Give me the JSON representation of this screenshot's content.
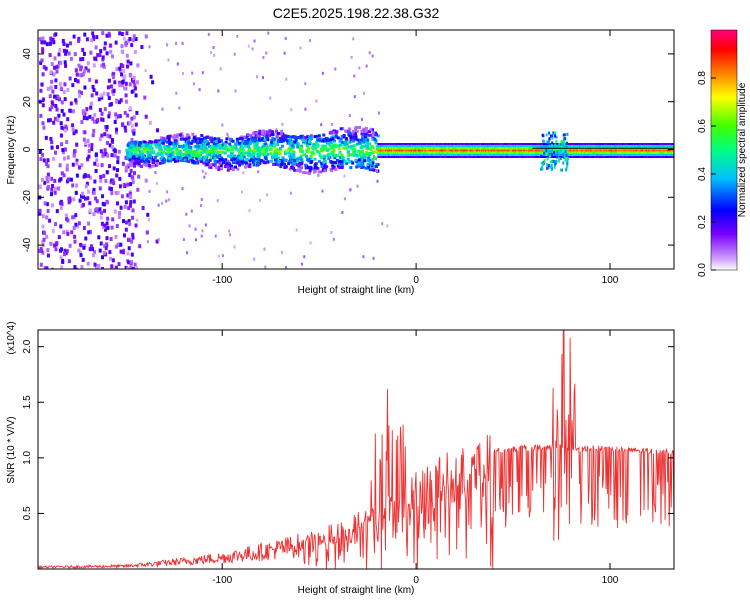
{
  "title": "C2E5.2025.198.22.38.G32",
  "chart_data": [
    {
      "type": "heatmap",
      "xlabel": "Height of straight line (km)",
      "ylabel": "Frequency (Hz)",
      "xlim": [
        -195,
        133
      ],
      "ylim": [
        -50,
        50
      ],
      "xticks": [
        -100,
        0,
        100
      ],
      "xticklabels": [
        "-100",
        "0",
        "100"
      ],
      "yticks": [
        -40,
        -20,
        0,
        20,
        40
      ],
      "yticklabels": [
        "-40",
        "-20",
        "0",
        "20",
        "40"
      ],
      "colorbar": {
        "label": "Normalized spectral amplitude",
        "range": [
          0,
          1
        ],
        "ticks": [
          0.0,
          0.2,
          0.4,
          0.6,
          0.8
        ],
        "ticklabels": [
          "0.0",
          "0.2",
          "0.4",
          "0.6",
          "0.8"
        ],
        "colors": [
          "#ffffff",
          "#cc99ff",
          "#7700ff",
          "#0000ff",
          "#00bfff",
          "#00ff80",
          "#40ff00",
          "#ffff00",
          "#ff8000",
          "#ff0000",
          "#ff0080"
        ]
      },
      "description_points": [
        {
          "x_range": [
            -195,
            -145
          ],
          "amplitude": "low, broadband noise"
        },
        {
          "x_range": [
            -150,
            -20
          ],
          "freq_spread_hz": 10,
          "amplitude": 0.35
        },
        {
          "x_range": [
            -20,
            133
          ],
          "freq_hz": 0,
          "amplitude": 0.9
        },
        {
          "x": 70,
          "feature": "broadening",
          "freq_spread_hz": 8
        }
      ]
    },
    {
      "type": "line",
      "xlabel": "Height of straight line (km)",
      "ylabel": "SNR (10 * V/V)",
      "y_multiplier": "(x10^4)",
      "xlim": [
        -195,
        133
      ],
      "ylim": [
        0,
        2.15
      ],
      "xticks": [
        -100,
        0,
        100
      ],
      "xticklabels": [
        "-100",
        "0",
        "100"
      ],
      "yticks": [
        0.5,
        1.0,
        1.5,
        2.0
      ],
      "yticklabels": [
        "0.5",
        "1.0",
        "1.5",
        "2.0"
      ],
      "color": "#ee3030",
      "envelope": {
        "x": [
          -195,
          -150,
          -120,
          -100,
          -80,
          -60,
          -40,
          -30,
          -20,
          -10,
          0,
          10,
          20,
          30,
          40,
          50,
          60,
          70,
          75,
          80,
          85,
          90,
          100,
          110,
          120,
          133
        ],
        "y": [
          0.02,
          0.03,
          0.08,
          0.12,
          0.18,
          0.25,
          0.38,
          0.45,
          0.55,
          0.65,
          0.78,
          0.9,
          0.98,
          1.04,
          1.07,
          1.08,
          1.09,
          1.1,
          1.1,
          1.08,
          1.08,
          1.09,
          1.08,
          1.07,
          1.06,
          1.05
        ]
      },
      "peaks": [
        {
          "x": -15,
          "y": 1.62
        },
        {
          "x": -8,
          "y": 1.28
        },
        {
          "x": 73,
          "y": 1.45
        },
        {
          "x": 76,
          "y": 2.15
        },
        {
          "x": 79,
          "y": 2.08
        }
      ]
    }
  ]
}
